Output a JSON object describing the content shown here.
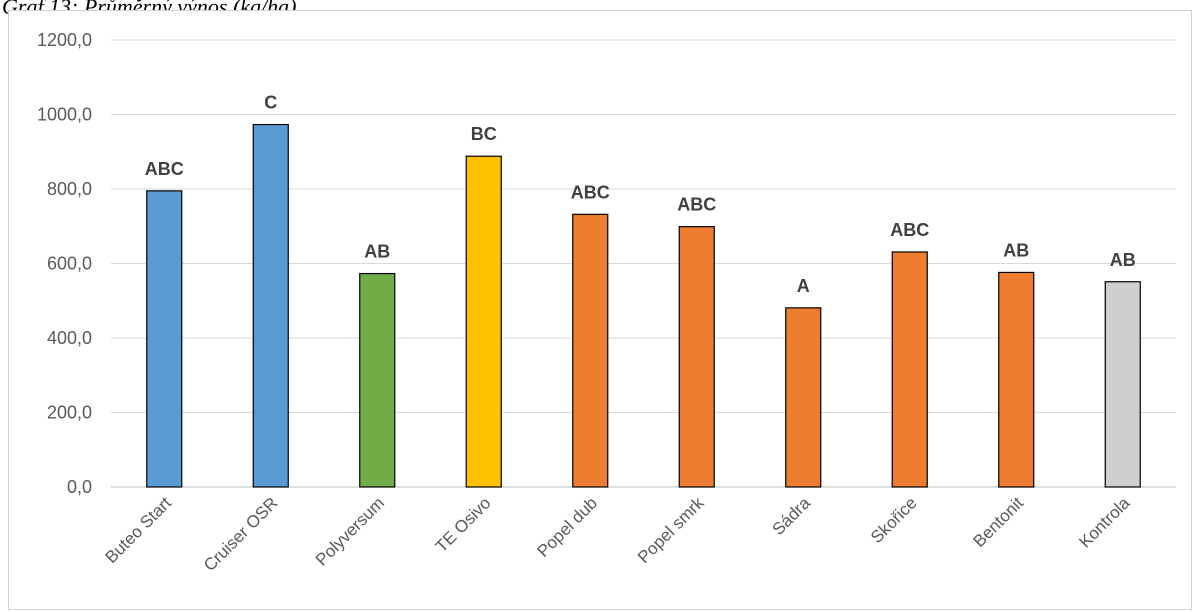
{
  "caption": "Graf 13: Průměrný výnos (kg/ha)",
  "chart_data": {
    "type": "bar",
    "categories": [
      "Buteo Start",
      "Cruiser OSR",
      "Polyversum",
      "TE Osivo",
      "Popel dub",
      "Popel smrk",
      "Sádra",
      "Skořice",
      "Bentonit",
      "Kontrola"
    ],
    "values": [
      795,
      973,
      573,
      888,
      732,
      699,
      481,
      631,
      576,
      551
    ],
    "labels": [
      "ABC",
      "C",
      "AB",
      "BC",
      "ABC",
      "ABC",
      "A",
      "ABC",
      "AB",
      "AB"
    ],
    "colors": [
      "#5b9bd5",
      "#5b9bd5",
      "#70ad47",
      "#ffc000",
      "#ed7d31",
      "#ed7d31",
      "#ed7d31",
      "#ed7d31",
      "#ed7d31",
      "#d0cece"
    ],
    "yticks": [
      "0,0",
      "200,0",
      "400,0",
      "600,0",
      "800,0",
      "1000,0",
      "1200,0"
    ],
    "ylim": [
      0,
      1200
    ],
    "grid": true,
    "legend": "none"
  }
}
